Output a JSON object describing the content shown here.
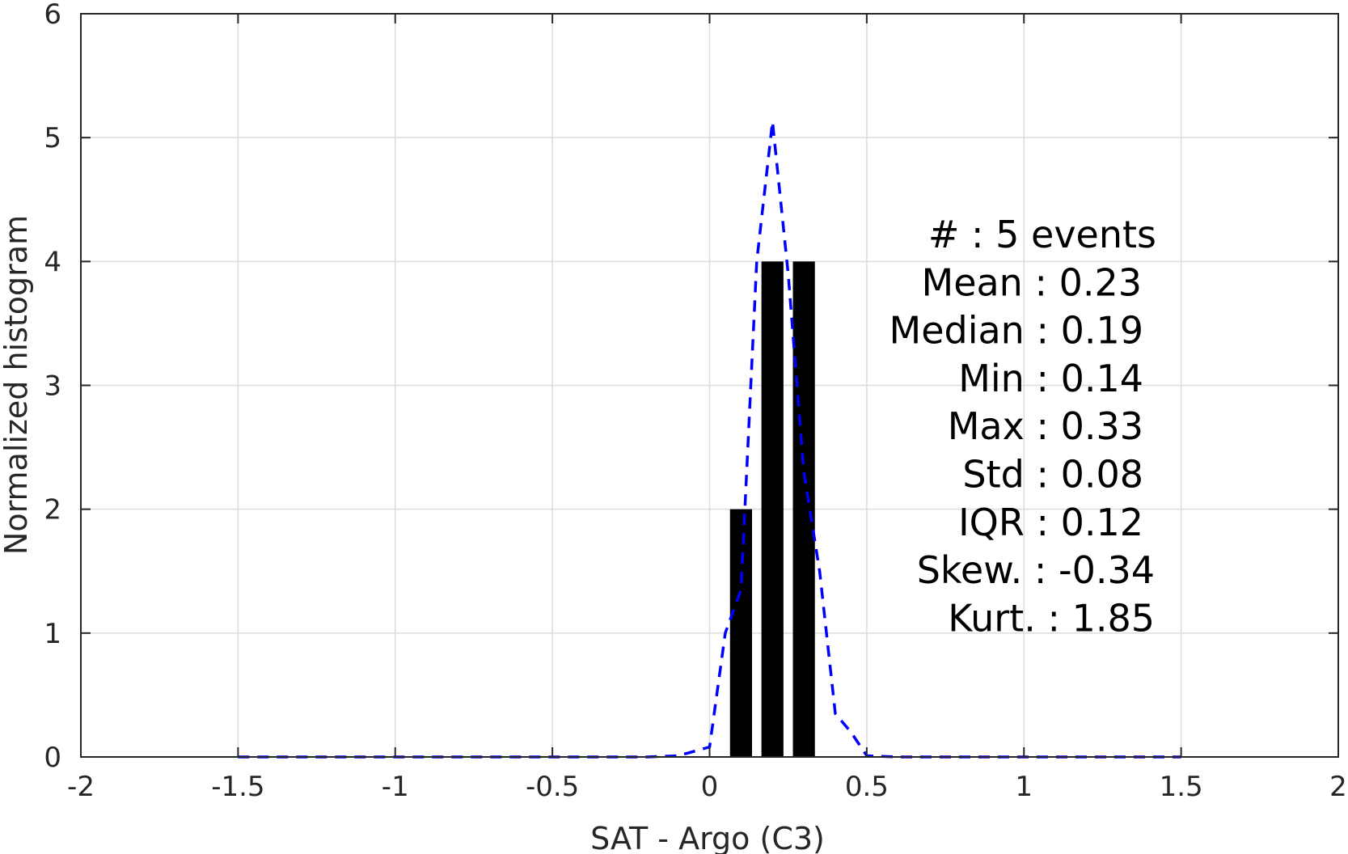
{
  "chart_data": {
    "type": "bar",
    "title": "",
    "xlabel": "SAT - Argo (C3)",
    "ylabel": "Normalized histogram",
    "xlim": [
      -2,
      2
    ],
    "ylim": [
      0,
      6
    ],
    "grid": true,
    "x_ticks": [
      -2,
      -1.5,
      -1,
      -0.5,
      0,
      0.5,
      1,
      1.5,
      2
    ],
    "x_tick_labels": [
      "-2",
      "-1.5",
      "-1",
      "-0.5",
      "0",
      "0.5",
      "1",
      "1.5",
      "2"
    ],
    "y_ticks": [
      0,
      1,
      2,
      3,
      4,
      5,
      6
    ],
    "y_tick_labels": [
      "0",
      "1",
      "2",
      "3",
      "4",
      "5",
      "6"
    ],
    "bar_width": 0.07,
    "bar_color": "#000000",
    "bars": [
      {
        "x": 0.1,
        "value": 2
      },
      {
        "x": 0.2,
        "value": 4
      },
      {
        "x": 0.3,
        "value": 4
      }
    ],
    "fit_curve": {
      "style": "dashed",
      "color": "#0000ff",
      "x": [
        -1.5,
        -1.4,
        -1.3,
        -1.2,
        -1.1,
        -1.0,
        -0.9,
        -0.8,
        -0.7,
        -0.6,
        -0.5,
        -0.4,
        -0.3,
        -0.2,
        -0.1,
        0.0,
        0.05,
        0.1,
        0.15,
        0.2,
        0.25,
        0.3,
        0.35,
        0.4,
        0.45,
        0.5,
        0.6,
        0.7,
        0.8,
        0.9,
        1.0,
        1.1,
        1.2,
        1.3,
        1.4,
        1.5
      ],
      "y": [
        0,
        0,
        0,
        0,
        0,
        0,
        0,
        0,
        0,
        0,
        0,
        0,
        0,
        0,
        0.01,
        0.08,
        1.0,
        1.35,
        4.0,
        5.13,
        3.9,
        2.3,
        1.5,
        0.35,
        0.2,
        0.01,
        0,
        0,
        0,
        0,
        0,
        0,
        0,
        0,
        0,
        0
      ]
    },
    "stats_text": [
      "#   : 5 events",
      "Mean : 0.23",
      "Median : 0.19",
      "Min : 0.14",
      "Max : 0.33",
      "Std : 0.08",
      "IQR : 0.12",
      "Skew. : -0.34",
      "Kurt. : 1.85"
    ],
    "colors": {
      "axis": "#262626",
      "grid": "#dcdcdc",
      "bars": "#000000",
      "curve": "#0000ff"
    }
  }
}
